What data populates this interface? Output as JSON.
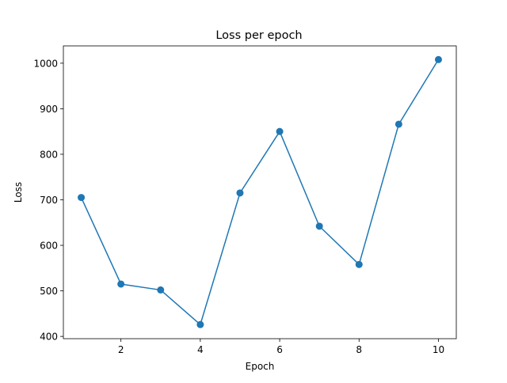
{
  "chart_data": {
    "type": "line",
    "title": "Loss per epoch",
    "xlabel": "Epoch",
    "ylabel": "Loss",
    "xlim": [
      0.55,
      10.45
    ],
    "ylim": [
      395,
      1038
    ],
    "x_ticks": [
      2,
      4,
      6,
      8,
      10
    ],
    "y_ticks": [
      400,
      500,
      600,
      700,
      800,
      900,
      1000
    ],
    "grid": false,
    "legend": "none",
    "series": [
      {
        "x": [
          1,
          2,
          3,
          4,
          5,
          6,
          7,
          8,
          9,
          10
        ],
        "values": [
          705,
          515,
          502,
          426,
          715,
          850,
          642,
          558,
          866,
          1008
        ],
        "color": "#1f77b4",
        "marker": "circle"
      }
    ]
  }
}
